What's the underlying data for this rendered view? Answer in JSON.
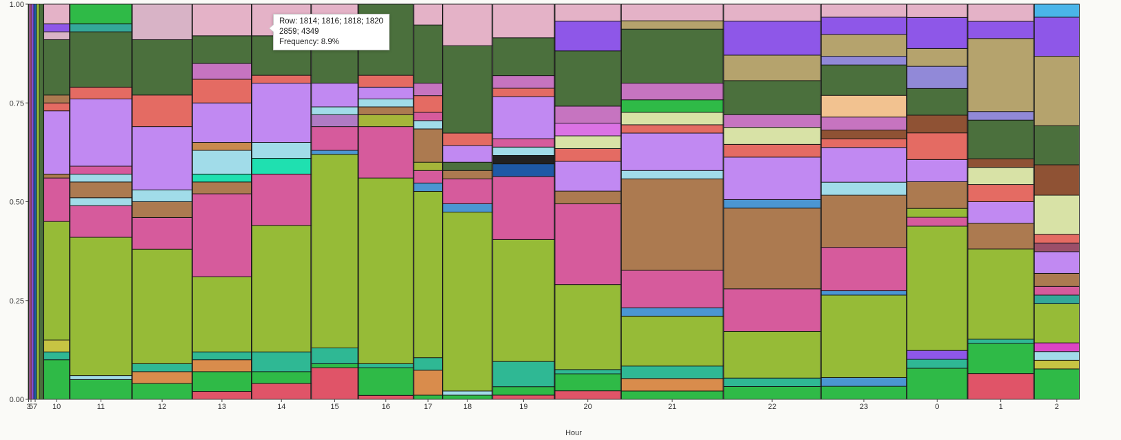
{
  "chart_data": {
    "type": "mosaic",
    "title": "",
    "xlabel": "Hour",
    "ylabel": "",
    "ylim": [
      0,
      1
    ],
    "y_ticks": [
      "0.00",
      "0.25",
      "0.50",
      "0.75",
      "1.00"
    ],
    "x_tick_labels": [
      "3",
      "5",
      "7",
      "10",
      "11",
      "12",
      "13",
      "14",
      "15",
      "16",
      "17",
      "18",
      "19",
      "20",
      "21",
      "22",
      "23",
      "0",
      "1",
      "2"
    ],
    "tooltip": {
      "row": "Row: 1814; 1816; 1818; 1820",
      "values": "2859; 4349",
      "frequency": "Frequency: 8.9%"
    },
    "columns": [
      {
        "hour": "3",
        "width": 1
      },
      {
        "hour": "4",
        "width": 2
      },
      {
        "hour": "5",
        "width": 2
      },
      {
        "hour": "6",
        "width": 3
      },
      {
        "hour": "7",
        "width": 4
      },
      {
        "hour": "8",
        "width": 4
      },
      {
        "hour": "9",
        "width": 6
      },
      {
        "hour": "10",
        "width": 38,
        "segments": [
          [
            0.1,
            "#2fba47"
          ],
          [
            0.02,
            "#2fb894"
          ],
          [
            0.03,
            "#c7c443"
          ],
          [
            0.3,
            "#96bb37"
          ],
          [
            0.11,
            "#d65b9c"
          ],
          [
            0.01,
            "#ac7a50"
          ],
          [
            0.16,
            "#c189f2"
          ],
          [
            0.02,
            "#e46b63"
          ],
          [
            0.02,
            "#ac7a50"
          ],
          [
            0.14,
            "#4b703d"
          ],
          [
            0.02,
            "#d8b3c6"
          ],
          [
            0.02,
            "#8e57e8"
          ],
          [
            0.05,
            "#e4b2c7"
          ]
        ]
      },
      {
        "hour": "11",
        "width": 90,
        "segments": [
          [
            0.05,
            "#2fba47"
          ],
          [
            0.01,
            "#a1dce9"
          ],
          [
            0.35,
            "#96bb37"
          ],
          [
            0.08,
            "#d65b9c"
          ],
          [
            0.02,
            "#a1dce9"
          ],
          [
            0.04,
            "#ac7a50"
          ],
          [
            0.02,
            "#a1dce9"
          ],
          [
            0.02,
            "#d65b9c"
          ],
          [
            0.17,
            "#c189f2"
          ],
          [
            0.03,
            "#e46b63"
          ],
          [
            0.14,
            "#4b703d"
          ],
          [
            0.02,
            "#34a899"
          ],
          [
            0.05,
            "#2fba47"
          ]
        ]
      },
      {
        "hour": "12",
        "width": 87,
        "segments": [
          [
            0.04,
            "#2fba47"
          ],
          [
            0.03,
            "#d98c4c"
          ],
          [
            0.02,
            "#2fb894"
          ],
          [
            0.29,
            "#96bb37"
          ],
          [
            0.08,
            "#d65b9c"
          ],
          [
            0.04,
            "#ac7a50"
          ],
          [
            0.03,
            "#a1dce9"
          ],
          [
            0.16,
            "#c189f2"
          ],
          [
            0.08,
            "#e46b63"
          ],
          [
            0.14,
            "#4b703d"
          ],
          [
            0.09,
            "#d8b3c6"
          ]
        ]
      },
      {
        "hour": "13",
        "width": 86,
        "segments": [
          [
            0.02,
            "#e05468"
          ],
          [
            0.05,
            "#2fba47"
          ],
          [
            0.03,
            "#d98c4c"
          ],
          [
            0.02,
            "#2fb894"
          ],
          [
            0.19,
            "#96bb37"
          ],
          [
            0.21,
            "#d65b9c"
          ],
          [
            0.03,
            "#ac7a50"
          ],
          [
            0.02,
            "#1fe0b0"
          ],
          [
            0.06,
            "#a1dce9"
          ],
          [
            0.02,
            "#c98a4f"
          ],
          [
            0.1,
            "#c189f2"
          ],
          [
            0.06,
            "#e46b63"
          ],
          [
            0.04,
            "#c674c0"
          ],
          [
            0.07,
            "#4b703d"
          ],
          [
            0.08,
            "#e4b2c7"
          ]
        ]
      },
      {
        "hour": "14",
        "width": 86,
        "segments": [
          [
            0.04,
            "#e05468"
          ],
          [
            0.03,
            "#2fba47"
          ],
          [
            0.05,
            "#2fb894"
          ],
          [
            0.32,
            "#96bb37"
          ],
          [
            0.13,
            "#d65b9c"
          ],
          [
            0.04,
            "#1fe0b0"
          ],
          [
            0.04,
            "#a1dce9"
          ],
          [
            0.15,
            "#c189f2"
          ],
          [
            0.02,
            "#e46b63"
          ],
          [
            0.1,
            "#4b703d"
          ],
          [
            0.08,
            "#e4b2c7"
          ]
        ]
      },
      {
        "hour": "15",
        "width": 68,
        "segments": [
          [
            0.08,
            "#e05468"
          ],
          [
            0.01,
            "#2fba47"
          ],
          [
            0.04,
            "#2fb894"
          ],
          [
            0.49,
            "#96bb37"
          ],
          [
            0.01,
            "#4b96d2"
          ],
          [
            0.06,
            "#d65b9c"
          ],
          [
            0.03,
            "#b07bc4"
          ],
          [
            0.02,
            "#a1dce9"
          ],
          [
            0.06,
            "#c189f2"
          ],
          [
            0.1,
            "#4b703d"
          ],
          [
            0.1,
            "#e4b2c7"
          ]
        ]
      },
      {
        "hour": "16",
        "width": 80,
        "segments": [
          [
            0.01,
            "#e05468"
          ],
          [
            0.07,
            "#2fba47"
          ],
          [
            0.01,
            "#2fb894"
          ],
          [
            0.47,
            "#96bb37"
          ],
          [
            0.13,
            "#d65b9c"
          ],
          [
            0.03,
            "#a5b53a"
          ],
          [
            0.02,
            "#ac7a50"
          ],
          [
            0.02,
            "#a1dce9"
          ],
          [
            0.03,
            "#c189f2"
          ],
          [
            0.03,
            "#e46b63"
          ],
          [
            0.18,
            "#4b703d"
          ]
        ]
      },
      {
        "hour": "17",
        "width": 42,
        "segments": [
          [
            0.01,
            "#2fba47"
          ],
          [
            0.06,
            "#d98c4c"
          ],
          [
            0.03,
            "#2fb894"
          ],
          [
            0.4,
            "#96bb37"
          ],
          [
            0.02,
            "#4b96d2"
          ],
          [
            0.03,
            "#d65b9c"
          ],
          [
            0.02,
            "#a5b53a"
          ],
          [
            0.08,
            "#ac7a50"
          ],
          [
            0.02,
            "#a1dce9"
          ],
          [
            0.02,
            "#d65b9c"
          ],
          [
            0.04,
            "#e46b63"
          ],
          [
            0.03,
            "#c674c0"
          ],
          [
            0.14,
            "#4b703d"
          ],
          [
            0.05,
            "#e4b2c7"
          ]
        ]
      },
      {
        "hour": "18",
        "width": 72,
        "segments": [
          [
            0.01,
            "#2fba47"
          ],
          [
            0.01,
            "#a1dce9"
          ],
          [
            0.43,
            "#96bb37"
          ],
          [
            0.02,
            "#4b96d2"
          ],
          [
            0.06,
            "#d65b9c"
          ],
          [
            0.02,
            "#ac7a50"
          ],
          [
            0.02,
            "#4b703d"
          ],
          [
            0.04,
            "#c189f2"
          ],
          [
            0.03,
            "#e46b63"
          ],
          [
            0.21,
            "#4b703d"
          ],
          [
            0.1,
            "#e4b2c7"
          ]
        ]
      },
      {
        "hour": "19",
        "width": 90,
        "segments": [
          [
            0.01,
            "#e05468"
          ],
          [
            0.02,
            "#2fba47"
          ],
          [
            0.06,
            "#2fb894"
          ],
          [
            0.29,
            "#96bb37"
          ],
          [
            0.15,
            "#d65b9c"
          ],
          [
            0.03,
            "#1e59a5"
          ],
          [
            0.02,
            "#222222"
          ],
          [
            0.02,
            "#a1dce9"
          ],
          [
            0.02,
            "#d65b9c"
          ],
          [
            0.1,
            "#c189f2"
          ],
          [
            0.02,
            "#e46b63"
          ],
          [
            0.03,
            "#c674c0"
          ],
          [
            0.09,
            "#4b703d"
          ],
          [
            0.08,
            "#e4b2c7"
          ]
        ]
      },
      {
        "hour": "20",
        "width": 96,
        "segments": [
          [
            0.02,
            "#e05468"
          ],
          [
            0.04,
            "#2fba47"
          ],
          [
            0.01,
            "#2fb894"
          ],
          [
            0.2,
            "#96bb37"
          ],
          [
            0.19,
            "#d65b9c"
          ],
          [
            0.03,
            "#ac7a50"
          ],
          [
            0.07,
            "#c189f2"
          ],
          [
            0.03,
            "#e46b63"
          ],
          [
            0.03,
            "#d8e2a6"
          ],
          [
            0.03,
            "#db72e4"
          ],
          [
            0.04,
            "#c674c0"
          ],
          [
            0.13,
            "#4b703d"
          ],
          [
            0.07,
            "#8e57e8"
          ],
          [
            0.04,
            "#e4b2c7"
          ]
        ]
      },
      {
        "hour": "21",
        "width": 148,
        "segments": [
          [
            0.02,
            "#2fba47"
          ],
          [
            0.03,
            "#d98c4c"
          ],
          [
            0.03,
            "#2fb894"
          ],
          [
            0.12,
            "#96bb37"
          ],
          [
            0.02,
            "#4b96d2"
          ],
          [
            0.09,
            "#d65b9c"
          ],
          [
            0.22,
            "#ac7a50"
          ],
          [
            0.02,
            "#a1dce9"
          ],
          [
            0.09,
            "#c189f2"
          ],
          [
            0.02,
            "#e46b63"
          ],
          [
            0.03,
            "#d8e2a6"
          ],
          [
            0.03,
            "#2fba47"
          ],
          [
            0.04,
            "#c674c0"
          ],
          [
            0.13,
            "#4b703d"
          ],
          [
            0.02,
            "#b5a36d"
          ],
          [
            0.04,
            "#e4b2c7"
          ]
        ]
      },
      {
        "hour": "22",
        "width": 141,
        "segments": [
          [
            0.03,
            "#2fba47"
          ],
          [
            0.02,
            "#2fb894"
          ],
          [
            0.11,
            "#96bb37"
          ],
          [
            0.1,
            "#d65b9c"
          ],
          [
            0.19,
            "#ac7a50"
          ],
          [
            0.02,
            "#4b96d2"
          ],
          [
            0.1,
            "#c189f2"
          ],
          [
            0.03,
            "#e46b63"
          ],
          [
            0.04,
            "#d8e2a6"
          ],
          [
            0.03,
            "#c674c0"
          ],
          [
            0.08,
            "#4b703d"
          ],
          [
            0.06,
            "#b5a36d"
          ],
          [
            0.08,
            "#8e57e8"
          ],
          [
            0.04,
            "#e4b2c7"
          ]
        ]
      },
      {
        "hour": "23",
        "width": 124,
        "segments": [
          [
            0.03,
            "#2fba47"
          ],
          [
            0.02,
            "#4b96d2"
          ],
          [
            0.19,
            "#96bb37"
          ],
          [
            0.01,
            "#4b96d2"
          ],
          [
            0.1,
            "#d65b9c"
          ],
          [
            0.12,
            "#ac7a50"
          ],
          [
            0.03,
            "#a1dce9"
          ],
          [
            0.08,
            "#c189f2"
          ],
          [
            0.02,
            "#e46b63"
          ],
          [
            0.02,
            "#8f5234"
          ],
          [
            0.03,
            "#c674c0"
          ],
          [
            0.05,
            "#f2c290"
          ],
          [
            0.07,
            "#4b703d"
          ],
          [
            0.02,
            "#9189d8"
          ],
          [
            0.05,
            "#b5a36d"
          ],
          [
            0.04,
            "#8e57e8"
          ],
          [
            0.03,
            "#e4b2c7"
          ]
        ]
      },
      {
        "hour": "0",
        "width": 88,
        "segments": [
          [
            0.07,
            "#2fba47"
          ],
          [
            0.02,
            "#2fb894"
          ],
          [
            0.02,
            "#8e57e8"
          ],
          [
            0.28,
            "#96bb37"
          ],
          [
            0.02,
            "#d65b9c"
          ],
          [
            0.02,
            "#96bb37"
          ],
          [
            0.06,
            "#ac7a50"
          ],
          [
            0.05,
            "#c189f2"
          ],
          [
            0.06,
            "#e46b63"
          ],
          [
            0.04,
            "#8f5234"
          ],
          [
            0.06,
            "#4b703d"
          ],
          [
            0.05,
            "#9189d8"
          ],
          [
            0.04,
            "#b5a36d"
          ],
          [
            0.07,
            "#8e57e8"
          ],
          [
            0.03,
            "#e4b2c7"
          ]
        ]
      },
      {
        "hour": "1",
        "width": 96,
        "segments": [
          [
            0.06,
            "#e05468"
          ],
          [
            0.07,
            "#2fba47"
          ],
          [
            0.01,
            "#2fb894"
          ],
          [
            0.21,
            "#96bb37"
          ],
          [
            0.06,
            "#ac7a50"
          ],
          [
            0.05,
            "#c189f2"
          ],
          [
            0.04,
            "#e46b63"
          ],
          [
            0.04,
            "#d8e2a6"
          ],
          [
            0.02,
            "#8f5234"
          ],
          [
            0.09,
            "#4b703d"
          ],
          [
            0.02,
            "#9189d8"
          ],
          [
            0.17,
            "#b5a36d"
          ],
          [
            0.04,
            "#8e57e8"
          ],
          [
            0.04,
            "#e4b2c7"
          ]
        ]
      },
      {
        "hour": "2",
        "width": 66,
        "segments": [
          [
            0.07,
            "#2fba47"
          ],
          [
            0.02,
            "#c7c443"
          ],
          [
            0.02,
            "#a1dce9"
          ],
          [
            0.02,
            "#db45c4"
          ],
          [
            0.09,
            "#96bb37"
          ],
          [
            0.02,
            "#34a899"
          ],
          [
            0.02,
            "#d65b9c"
          ],
          [
            0.03,
            "#ac7a50"
          ],
          [
            0.05,
            "#c189f2"
          ],
          [
            0.02,
            "#9b4f6a"
          ],
          [
            0.02,
            "#e46b63"
          ],
          [
            0.09,
            "#d8e2a6"
          ],
          [
            0.07,
            "#8f5234"
          ],
          [
            0.09,
            "#4b703d"
          ],
          [
            0.16,
            "#b5a36d"
          ],
          [
            0.09,
            "#8e57e8"
          ],
          [
            0.03,
            "#4ab5e9"
          ]
        ]
      }
    ]
  }
}
